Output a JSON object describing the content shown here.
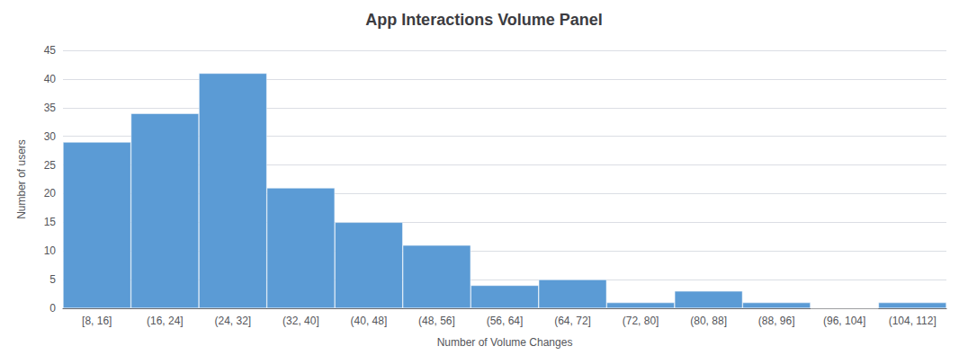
{
  "chart_data": {
    "type": "bar",
    "title": "App Interactions Volume Panel",
    "xlabel": "Number of Volume Changes",
    "ylabel": "Number of users",
    "categories": [
      "[8, 16]",
      "(16, 24]",
      "(24, 32]",
      "(32, 40]",
      "(40, 48]",
      "(48, 56]",
      "(56, 64]",
      "(64, 72]",
      "(72, 80]",
      "(80, 88]",
      "(88, 96]",
      "(96, 104]",
      "(104, 112]"
    ],
    "values": [
      29,
      34,
      41,
      21,
      15,
      11,
      4,
      5,
      1,
      3,
      1,
      0,
      1
    ],
    "color": "#5b9bd5",
    "ylim": [
      0,
      45
    ],
    "yticks": [
      0,
      5,
      10,
      15,
      20,
      25,
      30,
      35,
      40,
      45
    ],
    "grid": true
  }
}
